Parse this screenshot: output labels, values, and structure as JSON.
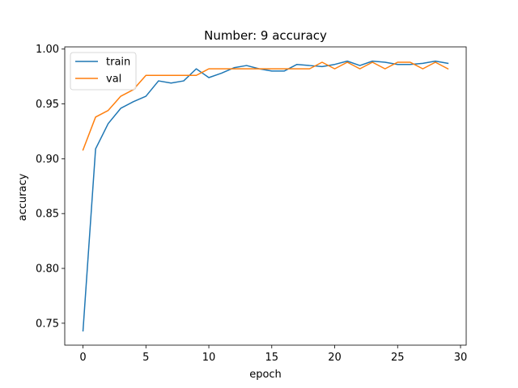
{
  "chart_data": {
    "type": "line",
    "title": "Number: 9 accuracy",
    "xlabel": "epoch",
    "ylabel": "accuracy",
    "xlim": [
      -1.45,
      30.45
    ],
    "ylim": [
      0.73,
      1.002
    ],
    "xticks": [
      0,
      5,
      10,
      15,
      20,
      25,
      30
    ],
    "yticks": [
      0.75,
      0.8,
      0.85,
      0.9,
      0.95,
      1.0
    ],
    "ytick_labels": [
      "0.75",
      "0.80",
      "0.85",
      "0.90",
      "0.95",
      "1.00"
    ],
    "grid": false,
    "legend_position": "top-left",
    "x": [
      0,
      1,
      2,
      3,
      4,
      5,
      6,
      7,
      8,
      9,
      10,
      11,
      12,
      13,
      14,
      15,
      16,
      17,
      18,
      19,
      20,
      21,
      22,
      23,
      24,
      25,
      26,
      27,
      28,
      29
    ],
    "series": [
      {
        "name": "train",
        "color": "#1f77b4",
        "values": [
          0.743,
          0.909,
          0.932,
          0.946,
          0.952,
          0.957,
          0.971,
          0.969,
          0.971,
          0.982,
          0.974,
          0.978,
          0.983,
          0.985,
          0.982,
          0.98,
          0.98,
          0.986,
          0.985,
          0.984,
          0.986,
          0.989,
          0.985,
          0.989,
          0.988,
          0.986,
          0.986,
          0.987,
          0.989,
          0.987
        ]
      },
      {
        "name": "val",
        "color": "#ff7f0e",
        "values": [
          0.908,
          0.938,
          0.944,
          0.957,
          0.963,
          0.976,
          0.976,
          0.976,
          0.976,
          0.976,
          0.982,
          0.982,
          0.982,
          0.982,
          0.982,
          0.982,
          0.982,
          0.982,
          0.982,
          0.988,
          0.982,
          0.988,
          0.982,
          0.988,
          0.982,
          0.988,
          0.988,
          0.982,
          0.988,
          0.982
        ]
      }
    ]
  }
}
